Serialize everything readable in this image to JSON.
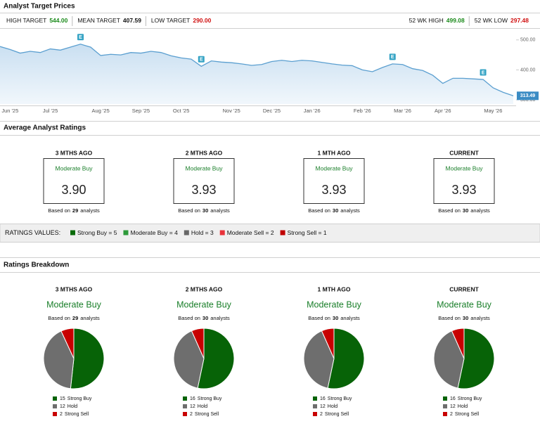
{
  "target_prices": {
    "title": "Analyst Target Prices",
    "targets": [
      {
        "label": "HIGH TARGET",
        "value": "544.00",
        "color": "#1a8a1a"
      },
      {
        "label": "MEAN TARGET",
        "value": "407.59",
        "color": "#111111"
      },
      {
        "label": "LOW TARGET",
        "value": "290.00",
        "color": "#d01010"
      }
    ],
    "range": [
      {
        "label": "52 WK HIGH",
        "value": "499.08",
        "color": "#1a8a1a"
      },
      {
        "label": "52 WK LOW",
        "value": "297.48",
        "color": "#d01010"
      }
    ],
    "price_chart": {
      "type": "line",
      "color": "#5b9fd0",
      "x": [
        null,
        "Jun '25",
        null,
        null,
        null,
        "Jul '25",
        null,
        null,
        null,
        null,
        "Aug '25",
        null,
        null,
        null,
        "Sep '25",
        null,
        null,
        null,
        "Oct '25",
        null,
        null,
        null,
        null,
        "Nov '25",
        null,
        null,
        null,
        "Dec '25",
        null,
        null,
        null,
        "Jan '26",
        null,
        null,
        null,
        null,
        "Feb '26",
        null,
        null,
        null,
        "Mar '26",
        null,
        null,
        null,
        "Apr '26",
        null,
        null,
        null,
        null,
        "May '26",
        null,
        null
      ],
      "values": [
        478,
        468,
        456,
        462,
        458,
        470,
        466,
        476,
        486,
        476,
        448,
        452,
        450,
        458,
        456,
        462,
        458,
        447,
        440,
        436,
        412,
        430,
        426,
        424,
        420,
        415,
        418,
        428,
        432,
        428,
        432,
        430,
        425,
        420,
        416,
        414,
        400,
        394,
        408,
        420,
        418,
        404,
        398,
        382,
        355,
        372,
        372,
        370,
        368,
        340,
        325,
        313.49
      ],
      "events": [
        null,
        null,
        null,
        null,
        null,
        null,
        null,
        null,
        "E",
        null,
        null,
        null,
        null,
        null,
        null,
        null,
        null,
        null,
        null,
        null,
        "E",
        null,
        null,
        null,
        null,
        null,
        null,
        null,
        null,
        null,
        null,
        null,
        null,
        null,
        null,
        null,
        null,
        null,
        null,
        "E",
        null,
        null,
        null,
        null,
        null,
        null,
        null,
        null,
        "E",
        null,
        null,
        null
      ],
      "current_price": "313.49",
      "ylim": [
        286,
        530
      ],
      "yticks": [
        {
          "value": 500,
          "label": "500.00"
        },
        {
          "value": 400,
          "label": "400.00"
        },
        {
          "value": 300,
          "label": "300.00"
        }
      ]
    }
  },
  "average_ratings": {
    "title": "Average Analyst Ratings",
    "cards": [
      {
        "period": "3 MTHS AGO",
        "rating": "Moderate Buy",
        "score": "3.90",
        "note_prefix": "Based on",
        "analysts": 29,
        "note_suffix": "analysts"
      },
      {
        "period": "2 MTHS AGO",
        "rating": "Moderate Buy",
        "score": "3.93",
        "note_prefix": "Based on",
        "analysts": 30,
        "note_suffix": "analysts"
      },
      {
        "period": "1 MTH AGO",
        "rating": "Moderate Buy",
        "score": "3.93",
        "note_prefix": "Based on",
        "analysts": 30,
        "note_suffix": "analysts"
      },
      {
        "period": "CURRENT",
        "rating": "Moderate Buy",
        "score": "3.93",
        "note_prefix": "Based on",
        "analysts": 30,
        "note_suffix": "analysts"
      }
    ]
  },
  "ratings_values": {
    "label": "RATINGS VALUES:",
    "items": [
      {
        "text": "Strong Buy = 5",
        "color": "#0a6b0a"
      },
      {
        "text": "Moderate Buy = 4",
        "color": "#2e9a3a"
      },
      {
        "text": "Hold = 3",
        "color": "#666666"
      },
      {
        "text": "Moderate Sell = 2",
        "color": "#e8323a"
      },
      {
        "text": "Strong Sell = 1",
        "color": "#c00000"
      }
    ]
  },
  "breakdown": {
    "title": "Ratings Breakdown",
    "columns": [
      {
        "period": "3 MTHS AGO",
        "rating": "Moderate Buy",
        "note_prefix": "Based on",
        "analysts": 29,
        "note_suffix": "analysts",
        "pie": {
          "type": "pie",
          "slices": [
            {
              "name": "Strong Buy",
              "value": 15,
              "color": "#076307"
            },
            {
              "name": "Hold",
              "value": 12,
              "color": "#6e6e6e"
            },
            {
              "name": "Strong Sell",
              "value": 2,
              "color": "#c80000"
            }
          ]
        }
      },
      {
        "period": "2 MTHS AGO",
        "rating": "Moderate Buy",
        "note_prefix": "Based on",
        "analysts": 30,
        "note_suffix": "analysts",
        "pie": {
          "type": "pie",
          "slices": [
            {
              "name": "Strong Buy",
              "value": 16,
              "color": "#076307"
            },
            {
              "name": "Hold",
              "value": 12,
              "color": "#6e6e6e"
            },
            {
              "name": "Strong Sell",
              "value": 2,
              "color": "#c80000"
            }
          ]
        }
      },
      {
        "period": "1 MTH AGO",
        "rating": "Moderate Buy",
        "note_prefix": "Based on",
        "analysts": 30,
        "note_suffix": "analysts",
        "pie": {
          "type": "pie",
          "slices": [
            {
              "name": "Strong Buy",
              "value": 16,
              "color": "#076307"
            },
            {
              "name": "Hold",
              "value": 12,
              "color": "#6e6e6e"
            },
            {
              "name": "Strong Sell",
              "value": 2,
              "color": "#c80000"
            }
          ]
        }
      },
      {
        "period": "CURRENT",
        "rating": "Moderate Buy",
        "note_prefix": "Based on",
        "analysts": 30,
        "note_suffix": "analysts",
        "pie": {
          "type": "pie",
          "slices": [
            {
              "name": "Strong Buy",
              "value": 16,
              "color": "#076307"
            },
            {
              "name": "Hold",
              "value": 12,
              "color": "#6e6e6e"
            },
            {
              "name": "Strong Sell",
              "value": 2,
              "color": "#c80000"
            }
          ]
        }
      }
    ]
  }
}
